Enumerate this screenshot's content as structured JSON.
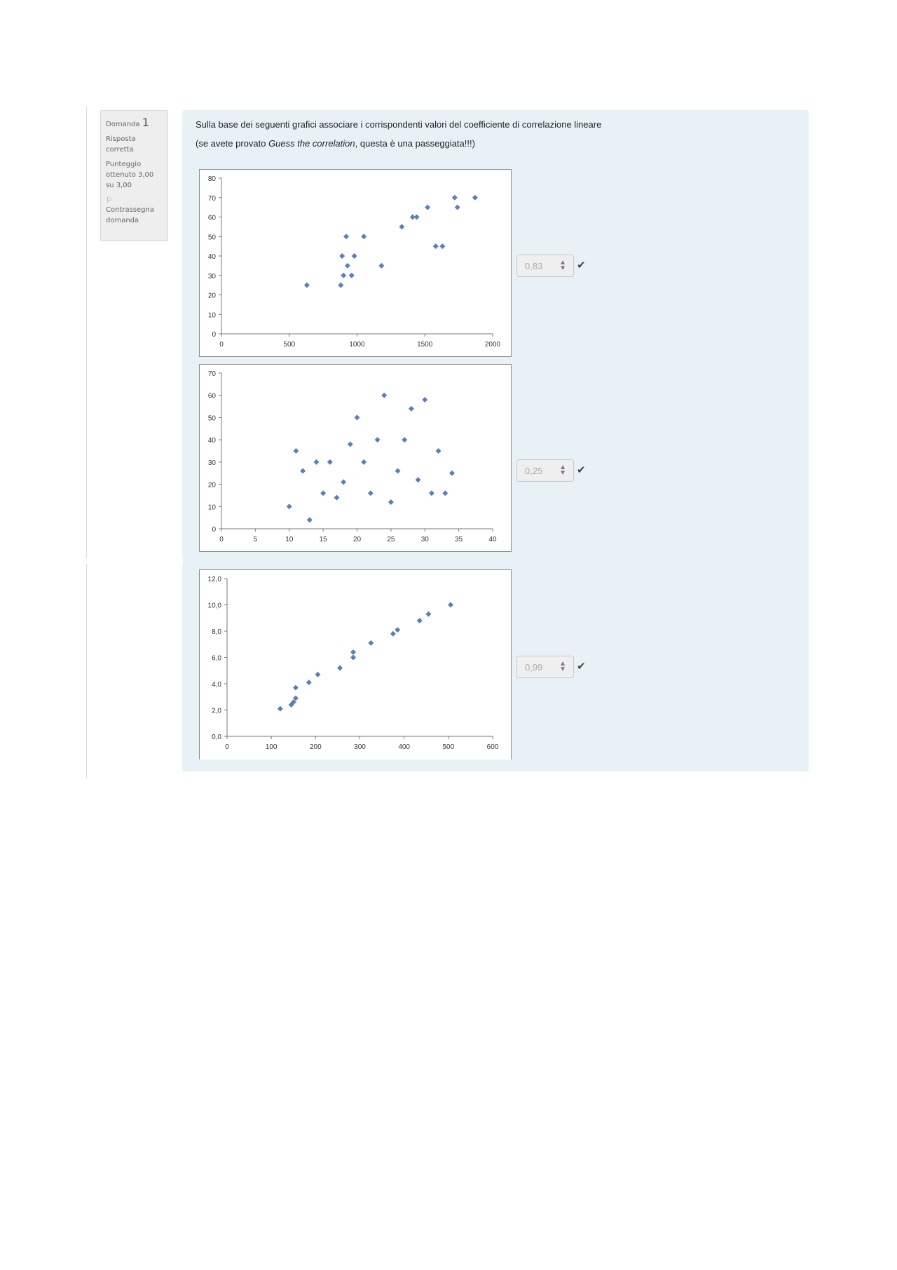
{
  "info": {
    "question_label": "Domanda",
    "question_number": "1",
    "status": "Risposta corretta",
    "score": "Punteggio ottenuto 3,00 su 3,00",
    "flag_icon": "flag-icon",
    "flag_label": "Contrassegna domanda"
  },
  "question": {
    "line1": "Sulla base dei seguenti grafici associare i corrispondenti valori del coefficiente di correlazione lineare",
    "line2_before": "(se avete provato ",
    "line2_italic": "Guess the correlation",
    "line2_after": ", questa è una passeggiata!!!)"
  },
  "answers": [
    {
      "value": "0,83",
      "correct_icon": "check-icon"
    },
    {
      "value": "0,25",
      "correct_icon": "check-icon"
    },
    {
      "value": "0,99",
      "correct_icon": "check-icon"
    }
  ],
  "chart_data": [
    {
      "type": "scatter",
      "xlim": [
        0,
        2000
      ],
      "ylim": [
        0,
        80
      ],
      "xticks": [
        "0",
        "500",
        "1000",
        "1500",
        "2000"
      ],
      "yticks": [
        "0",
        "10",
        "20",
        "30",
        "40",
        "50",
        "60",
        "70",
        "80"
      ],
      "marker_color": "#5b7fbb",
      "points": [
        [
          630,
          25
        ],
        [
          880,
          25
        ],
        [
          900,
          30
        ],
        [
          960,
          30
        ],
        [
          890,
          40
        ],
        [
          930,
          35
        ],
        [
          980,
          40
        ],
        [
          920,
          50
        ],
        [
          1050,
          50
        ],
        [
          1180,
          35
        ],
        [
          1330,
          55
        ],
        [
          1410,
          60
        ],
        [
          1440,
          60
        ],
        [
          1520,
          65
        ],
        [
          1580,
          45
        ],
        [
          1630,
          45
        ],
        [
          1720,
          70
        ],
        [
          1740,
          65
        ],
        [
          1870,
          70
        ]
      ]
    },
    {
      "type": "scatter",
      "xlim": [
        0,
        40
      ],
      "ylim": [
        0,
        70
      ],
      "xticks": [
        "0",
        "5",
        "10",
        "15",
        "20",
        "25",
        "30",
        "35",
        "40"
      ],
      "yticks": [
        "0",
        "10",
        "20",
        "30",
        "40",
        "50",
        "60",
        "70"
      ],
      "marker_color": "#5b7fbb",
      "points": [
        [
          10,
          10
        ],
        [
          11,
          35
        ],
        [
          12,
          26
        ],
        [
          13,
          4
        ],
        [
          14,
          30
        ],
        [
          15,
          16
        ],
        [
          16,
          30
        ],
        [
          17,
          14
        ],
        [
          18,
          21
        ],
        [
          19,
          38
        ],
        [
          20,
          50
        ],
        [
          21,
          30
        ],
        [
          22,
          16
        ],
        [
          23,
          40
        ],
        [
          24,
          60
        ],
        [
          25,
          12
        ],
        [
          26,
          26
        ],
        [
          27,
          40
        ],
        [
          28,
          54
        ],
        [
          29,
          22
        ],
        [
          30,
          58
        ],
        [
          31,
          16
        ],
        [
          32,
          35
        ],
        [
          33,
          16
        ],
        [
          34,
          25
        ]
      ]
    },
    {
      "type": "scatter",
      "xlim": [
        0,
        600
      ],
      "ylim": [
        0,
        12
      ],
      "xticks": [
        "0",
        "100",
        "200",
        "300",
        "400",
        "500",
        "600"
      ],
      "yticks": [
        "0,0",
        "2,0",
        "4,0",
        "6,0",
        "8,0",
        "10,0",
        "12,0"
      ],
      "marker_color": "#5b7fbb",
      "points": [
        [
          120,
          2.1
        ],
        [
          145,
          2.4
        ],
        [
          150,
          2.6
        ],
        [
          155,
          2.9
        ],
        [
          155,
          3.7
        ],
        [
          185,
          4.1
        ],
        [
          205,
          4.7
        ],
        [
          255,
          5.2
        ],
        [
          285,
          6.0
        ],
        [
          285,
          6.4
        ],
        [
          325,
          7.1
        ],
        [
          375,
          7.8
        ],
        [
          385,
          8.1
        ],
        [
          435,
          8.8
        ],
        [
          455,
          9.3
        ],
        [
          505,
          10.0
        ]
      ]
    }
  ]
}
